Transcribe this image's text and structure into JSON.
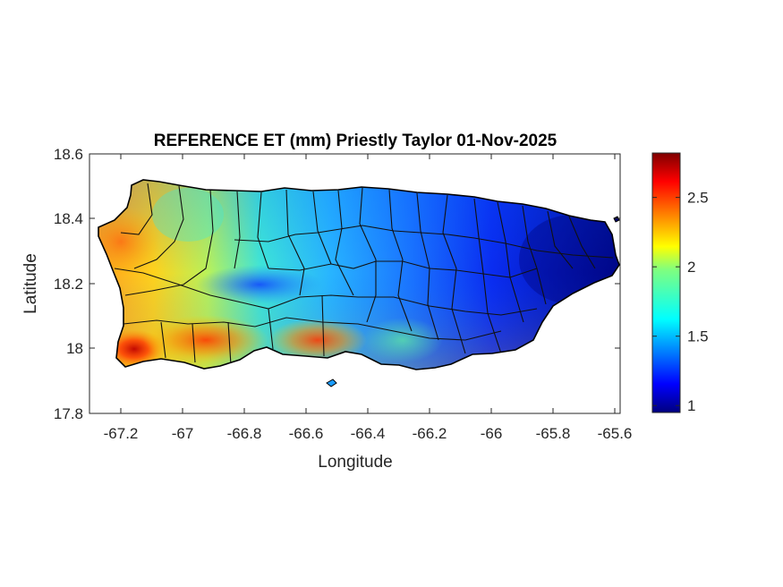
{
  "figure": {
    "title": "REFERENCE ET (mm) Priestly Taylor 01-Nov-2025",
    "xlabel": "Longitude",
    "ylabel": "Latitude"
  },
  "map": {
    "region": "Puerto Rico",
    "variable": "Reference evapotranspiration (Priestly Taylor)",
    "units": "mm",
    "date": "01-Nov-2025",
    "colormap": "jet",
    "x_ticks": [
      "-67.2",
      "-67",
      "-66.8",
      "-66.6",
      "-66.4",
      "-66.2",
      "-66",
      "-65.8",
      "-65.6"
    ],
    "y_ticks": [
      "18.6",
      "18.4",
      "18.2",
      "18",
      "17.8"
    ],
    "xlim": [
      -67.3,
      -65.58
    ],
    "ylim": [
      17.8,
      18.6
    ],
    "colorbar": {
      "range": [
        0.95,
        2.82
      ],
      "ticks": [
        "1",
        "1.5",
        "2",
        "2.5"
      ],
      "tick_values": [
        1,
        1.5,
        2,
        2.5
      ]
    },
    "pattern": "high ET (2.3–2.8) along southwest coast, low ET (~1.0) in east"
  }
}
